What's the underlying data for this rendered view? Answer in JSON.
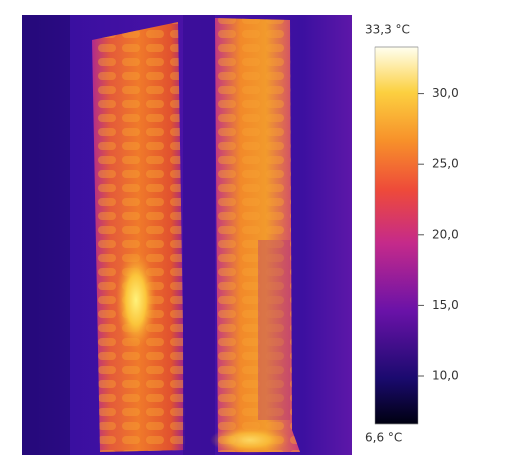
{
  "colorbar": {
    "max": {
      "value": 33.3,
      "label": "33,3 °C"
    },
    "min": {
      "value": 6.6,
      "label": "6,6 °C"
    },
    "ticks": [
      {
        "value": 30,
        "label": "30,0"
      },
      {
        "value": 25,
        "label": "25,0"
      },
      {
        "value": 20,
        "label": "20,0"
      },
      {
        "value": 15,
        "label": "15,0"
      },
      {
        "value": 10,
        "label": "10,0"
      }
    ]
  }
}
